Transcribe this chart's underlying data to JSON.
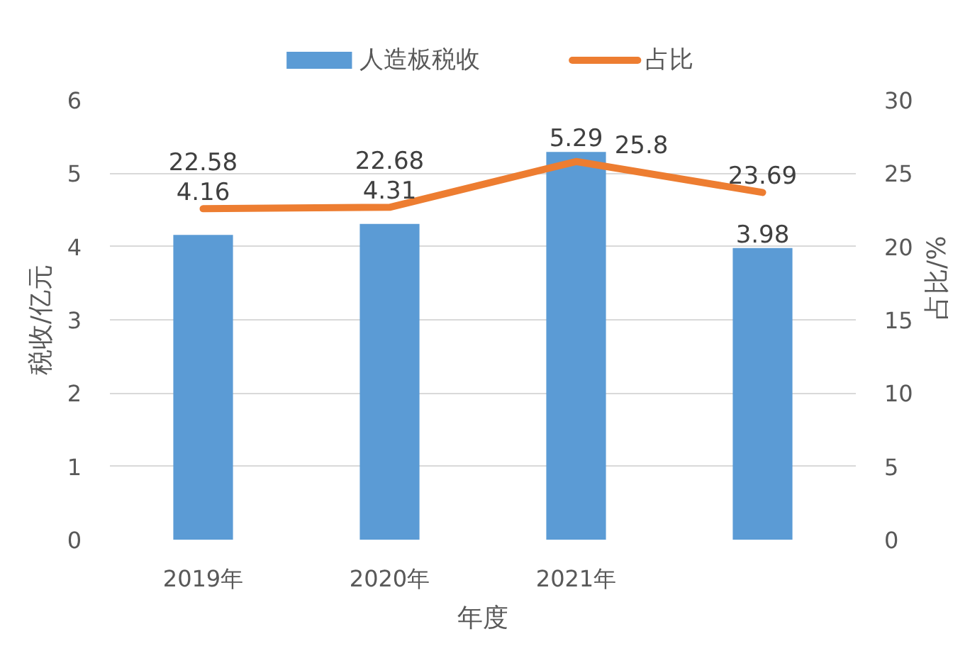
{
  "chart_data": {
    "type": "bar",
    "xlabel": "年度",
    "ylabel": "税收/亿元",
    "y2label": "占比/%",
    "categories": [
      "2019年",
      "2020年",
      "2021年",
      null
    ],
    "series": [
      {
        "name": "人造板税收",
        "color": "#5b9bd5",
        "values": [
          4.16,
          4.31,
          5.29,
          3.98
        ]
      },
      {
        "name": "占比",
        "type": "line",
        "axis": "y2",
        "color": "#ed7d31",
        "values": [
          22.58,
          22.68,
          25.8,
          23.69
        ]
      }
    ],
    "ylim": [
      0,
      6
    ],
    "yticks": [
      0,
      1,
      2,
      3,
      4,
      5,
      6
    ],
    "y2lim": [
      0,
      30
    ],
    "y2ticks": [
      0,
      5,
      10,
      15,
      20,
      25,
      30
    ],
    "grid": "y",
    "legend": "top",
    "data_labels": true,
    "line_style": "solid"
  }
}
